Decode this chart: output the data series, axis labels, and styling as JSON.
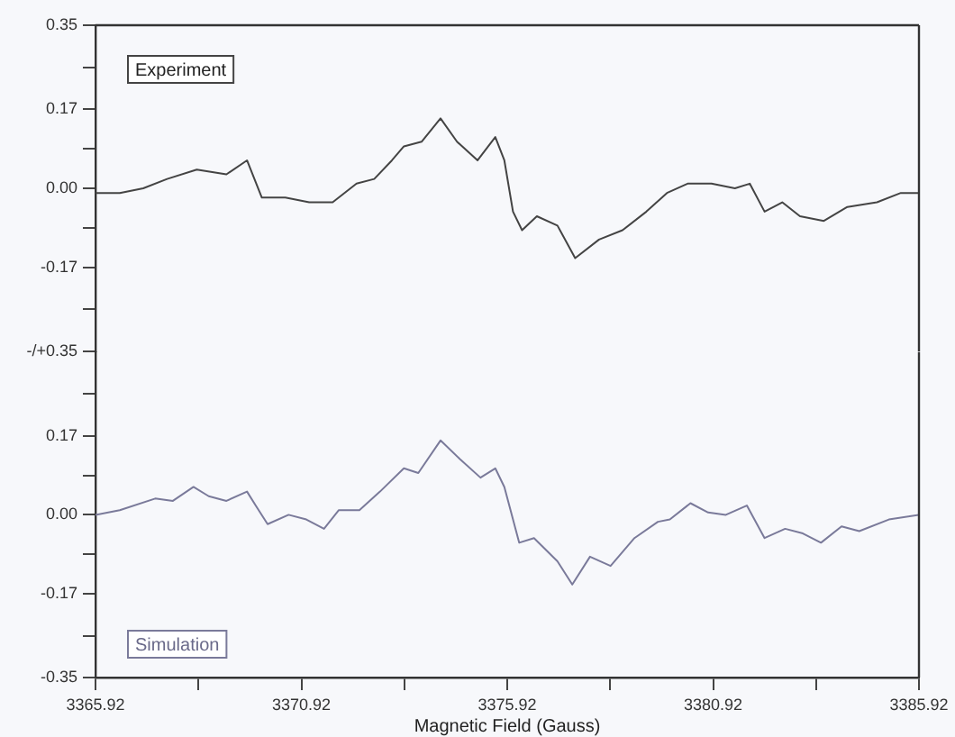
{
  "chart_data": [
    {
      "type": "line",
      "annotations": [
        "Experiment"
      ],
      "tick_labels": "y",
      "xlim": [
        3365.92,
        3385.92
      ],
      "ylim": [
        -0.35,
        0.35
      ],
      "yticks": [
        0.35,
        {
          "value": 0.26,
          "label": null
        },
        0.17,
        {
          "value": 0.085,
          "label": null
        },
        {
          "value": 0,
          "label": "0.00"
        },
        {
          "value": -0.085,
          "label": null
        },
        -0.17,
        {
          "value": -0.26,
          "label": null
        },
        {
          "value": -0.35,
          "label": "-/+0.35"
        }
      ],
      "series": [
        {
          "color": "#444444",
          "x": [
            3365.92,
            3366.51,
            3367.08,
            3367.66,
            3368.38,
            3369.1,
            3369.6,
            3369.96,
            3370.53,
            3371.11,
            3371.68,
            3372.26,
            3372.69,
            3373.12,
            3373.41,
            3373.84,
            3374.3,
            3374.7,
            3375.2,
            3375.63,
            3375.85,
            3376.06,
            3376.28,
            3376.64,
            3377.14,
            3377.57,
            3378.15,
            3378.72,
            3379.3,
            3379.8,
            3380.3,
            3380.88,
            3381.45,
            3381.81,
            3382.17,
            3382.6,
            3383.03,
            3383.61,
            3384.18,
            3384.9,
            3385.48,
            3385.92
          ],
          "values": [
            -0.01,
            -0.01,
            0.0,
            0.02,
            0.04,
            0.03,
            0.06,
            -0.02,
            -0.02,
            -0.03,
            -0.03,
            0.01,
            0.02,
            0.06,
            0.09,
            0.1,
            0.15,
            0.1,
            0.06,
            0.11,
            0.06,
            -0.05,
            -0.09,
            -0.06,
            -0.08,
            -0.15,
            -0.11,
            -0.09,
            -0.05,
            -0.01,
            0.01,
            0.01,
            0.0,
            0.01,
            -0.05,
            -0.03,
            -0.06,
            -0.07,
            -0.04,
            -0.03,
            -0.01,
            -0.01
          ]
        }
      ]
    },
    {
      "type": "line",
      "annotations": [
        "Simulation"
      ],
      "xlabel": "Magnetic Field (Gauss)",
      "xlim": [
        3365.92,
        3385.92
      ],
      "ylim": [
        -0.35,
        0.35
      ],
      "xticks": [
        3365.92,
        {
          "value": 3368.42,
          "label": null
        },
        3370.92,
        {
          "value": 3373.42,
          "label": null
        },
        3375.92,
        {
          "value": 3378.42,
          "label": null
        },
        3380.92,
        {
          "value": 3383.42,
          "label": null
        },
        3385.92
      ],
      "yticks": [
        {
          "value": 0.26,
          "label": null
        },
        0.17,
        {
          "value": 0.085,
          "label": null
        },
        {
          "value": 0,
          "label": "0.00"
        },
        {
          "value": -0.085,
          "label": null
        },
        -0.17,
        {
          "value": -0.26,
          "label": null
        },
        -0.35
      ],
      "series": [
        {
          "color": "#7a7a9a",
          "x": [
            3365.92,
            3366.51,
            3367.37,
            3367.8,
            3368.3,
            3368.67,
            3369.1,
            3369.6,
            3369.81,
            3370.1,
            3370.61,
            3371.04,
            3371.47,
            3371.83,
            3372.33,
            3372.83,
            3373.41,
            3373.76,
            3374.3,
            3374.77,
            3375.27,
            3375.63,
            3375.85,
            3376.21,
            3376.57,
            3377.14,
            3377.5,
            3377.93,
            3378.43,
            3379.01,
            3379.58,
            3379.87,
            3380.37,
            3380.8,
            3381.23,
            3381.74,
            3382.17,
            3382.67,
            3383.1,
            3383.54,
            3384.04,
            3384.47,
            3385.19,
            3385.92
          ],
          "values": [
            0.0,
            0.01,
            0.035,
            0.03,
            0.06,
            0.04,
            0.03,
            0.05,
            0.02,
            -0.02,
            0.0,
            -0.01,
            -0.03,
            0.01,
            0.01,
            0.05,
            0.1,
            0.09,
            0.16,
            0.12,
            0.08,
            0.1,
            0.06,
            -0.06,
            -0.05,
            -0.1,
            -0.15,
            -0.09,
            -0.11,
            -0.05,
            -0.015,
            -0.01,
            0.025,
            0.005,
            0.0,
            0.02,
            -0.05,
            -0.03,
            -0.04,
            -0.06,
            -0.025,
            -0.035,
            -0.01,
            0.0
          ]
        }
      ]
    }
  ]
}
